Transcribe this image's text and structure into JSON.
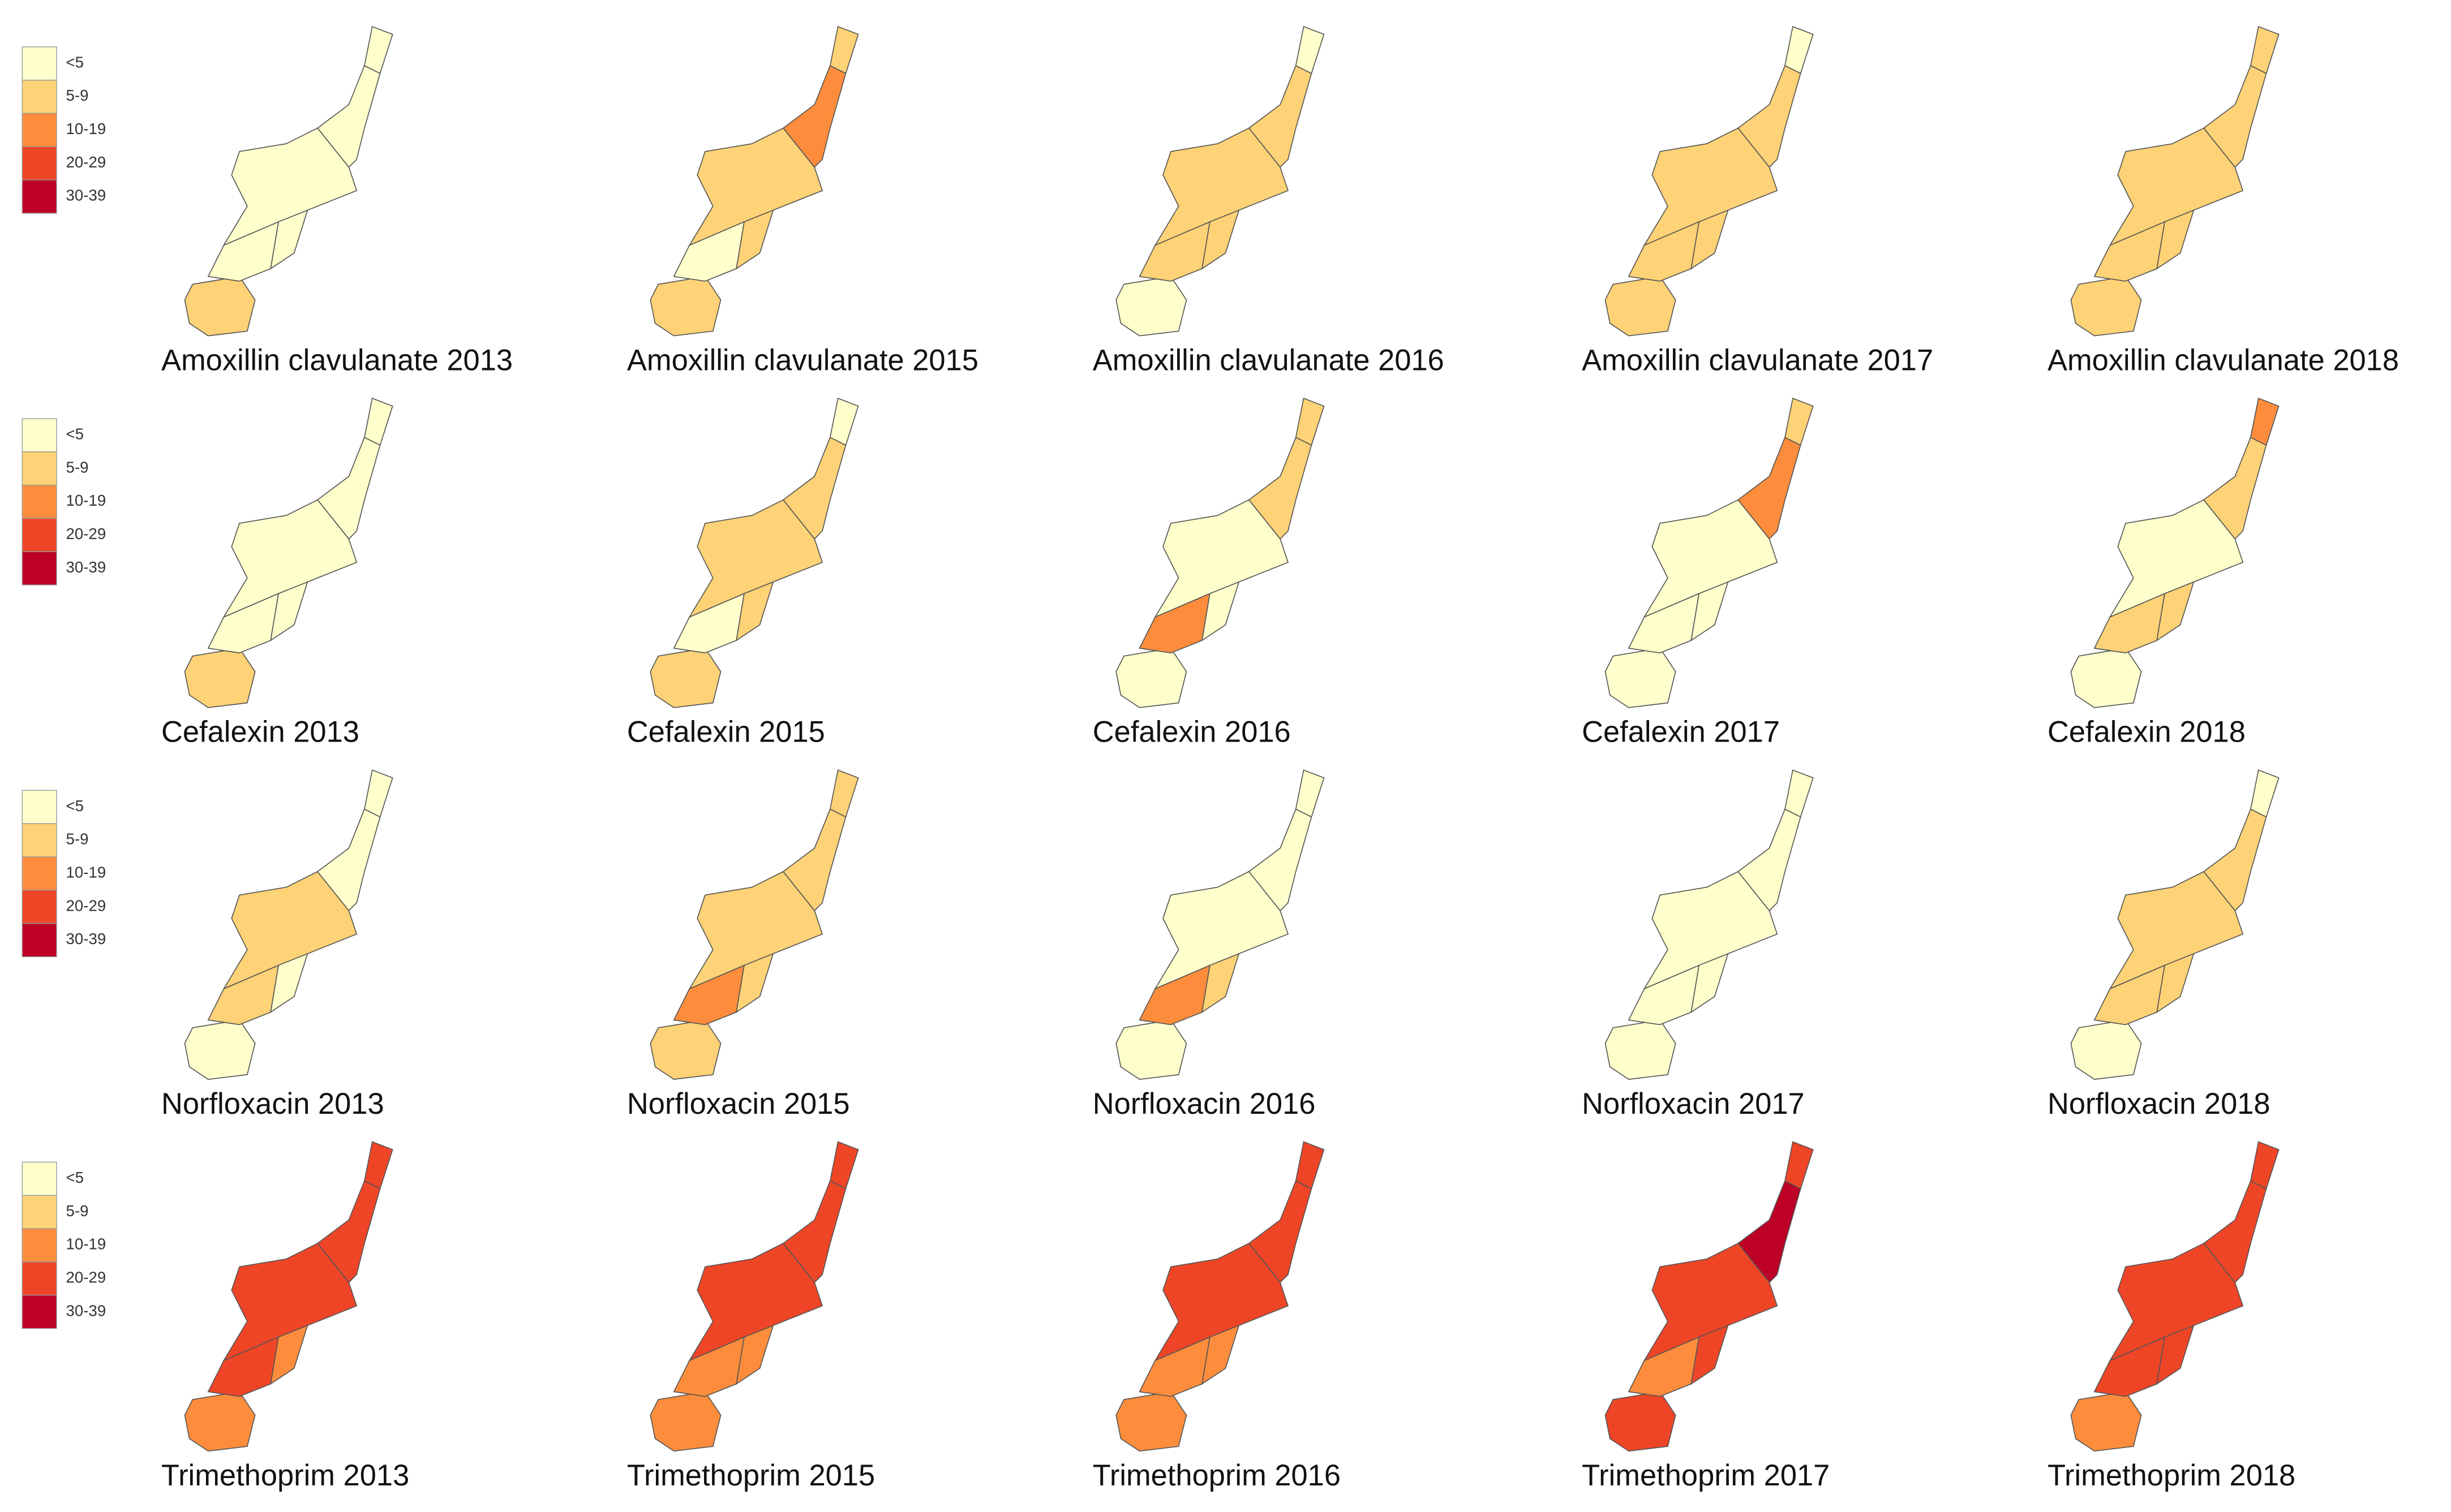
{
  "legend": {
    "labels": [
      "<5",
      "5-9",
      "10-19",
      "20-29",
      "30-39"
    ],
    "colors": [
      "#ffffcc",
      "#fed276",
      "#fd8d3c",
      "#ef4527",
      "#bd0026"
    ]
  },
  "maps": [
    {
      "title": "Amoxillin clavulanate 2013",
      "regions": [
        1,
        0,
        0,
        0,
        0,
        0
      ]
    },
    {
      "title": "Amoxillin clavulanate 2015",
      "regions": [
        1,
        0,
        1,
        1,
        2,
        1
      ]
    },
    {
      "title": "Amoxillin clavulanate 2016",
      "regions": [
        0,
        1,
        1,
        1,
        1,
        0
      ]
    },
    {
      "title": "Amoxillin clavulanate 2017",
      "regions": [
        1,
        1,
        1,
        1,
        1,
        0
      ]
    },
    {
      "title": "Amoxillin clavulanate 2018",
      "regions": [
        1,
        1,
        1,
        1,
        1,
        1
      ]
    },
    {
      "title": "Cefalexin 2013",
      "regions": [
        1,
        0,
        0,
        0,
        0,
        0
      ]
    },
    {
      "title": "Cefalexin 2015",
      "regions": [
        1,
        0,
        1,
        1,
        1,
        0
      ]
    },
    {
      "title": "Cefalexin 2016",
      "regions": [
        0,
        2,
        0,
        0,
        1,
        1
      ]
    },
    {
      "title": "Cefalexin 2017",
      "regions": [
        0,
        0,
        0,
        0,
        2,
        1
      ]
    },
    {
      "title": "Cefalexin 2018",
      "regions": [
        0,
        1,
        1,
        0,
        1,
        2
      ]
    },
    {
      "title": "Norfloxacin 2013",
      "regions": [
        0,
        1,
        0,
        1,
        0,
        0
      ]
    },
    {
      "title": "Norfloxacin 2015",
      "regions": [
        1,
        2,
        1,
        1,
        1,
        1
      ]
    },
    {
      "title": "Norfloxacin 2016",
      "regions": [
        0,
        2,
        1,
        0,
        0,
        0
      ]
    },
    {
      "title": "Norfloxacin 2017",
      "regions": [
        0,
        0,
        0,
        0,
        0,
        0
      ]
    },
    {
      "title": "Norfloxacin 2018",
      "regions": [
        0,
        1,
        1,
        1,
        1,
        0
      ]
    },
    {
      "title": "Trimethoprim 2013",
      "regions": [
        2,
        3,
        2,
        3,
        3,
        3
      ]
    },
    {
      "title": "Trimethoprim 2015",
      "regions": [
        2,
        2,
        2,
        3,
        3,
        3
      ]
    },
    {
      "title": "Trimethoprim 2016",
      "regions": [
        2,
        2,
        2,
        3,
        3,
        3
      ]
    },
    {
      "title": "Trimethoprim 2017",
      "regions": [
        3,
        2,
        3,
        3,
        4,
        3
      ]
    },
    {
      "title": "Trimethoprim 2018",
      "regions": [
        2,
        3,
        3,
        3,
        3,
        3
      ]
    }
  ]
}
